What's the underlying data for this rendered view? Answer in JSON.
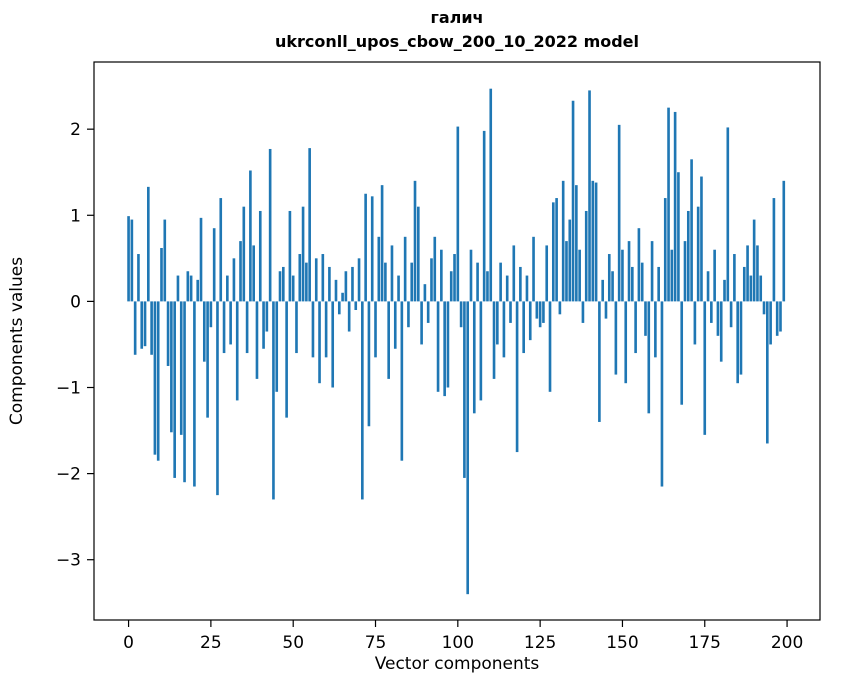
{
  "chart_data": {
    "type": "bar",
    "title_lines": [
      "галич",
      "ukrconll_upos_cbow_200_10_2022 model"
    ],
    "xlabel": "Vector components",
    "ylabel": "Components values",
    "bar_color": "#1f77b4",
    "legend": "none",
    "grid": false,
    "xticks": [
      0,
      25,
      50,
      75,
      100,
      125,
      150,
      175,
      200
    ],
    "yticks": [
      -3,
      -2,
      -1,
      0,
      1,
      2
    ],
    "xlim": [
      -10.5,
      210
    ],
    "ylim": [
      -3.7,
      2.78
    ],
    "x_start": 0,
    "values": [
      0.99,
      0.95,
      -0.62,
      0.55,
      -0.55,
      -0.52,
      1.33,
      -0.62,
      -1.78,
      -1.85,
      0.62,
      0.95,
      -0.75,
      -1.52,
      -2.05,
      0.3,
      -1.55,
      -2.1,
      0.35,
      0.3,
      -2.15,
      0.25,
      0.97,
      -0.7,
      -1.35,
      -0.3,
      0.85,
      -2.25,
      1.2,
      -0.6,
      0.3,
      -0.5,
      0.5,
      -1.15,
      0.7,
      1.1,
      -0.6,
      1.52,
      0.65,
      -0.9,
      1.05,
      -0.55,
      -0.35,
      1.77,
      -2.3,
      -1.05,
      0.35,
      0.4,
      -1.35,
      1.05,
      0.3,
      -0.6,
      0.55,
      1.1,
      0.45,
      1.78,
      -0.65,
      0.5,
      -0.95,
      0.55,
      -0.65,
      0.4,
      -1.0,
      0.25,
      -0.15,
      0.1,
      0.35,
      -0.35,
      0.4,
      -0.1,
      0.5,
      -2.3,
      1.25,
      -1.45,
      1.22,
      -0.65,
      0.75,
      1.35,
      0.45,
      -0.9,
      0.65,
      -0.55,
      0.3,
      -1.85,
      0.75,
      -0.3,
      0.45,
      1.4,
      1.1,
      -0.5,
      0.2,
      -0.25,
      0.5,
      0.75,
      -1.05,
      0.6,
      -1.1,
      -1.0,
      0.35,
      0.55,
      2.03,
      -0.3,
      -2.05,
      -3.4,
      0.6,
      -1.3,
      0.45,
      -1.15,
      1.98,
      0.35,
      2.47,
      -0.9,
      -0.5,
      0.45,
      -0.65,
      0.3,
      -0.25,
      0.65,
      -1.75,
      0.4,
      -0.6,
      0.3,
      -0.45,
      0.75,
      -0.2,
      -0.3,
      -0.25,
      0.65,
      -1.05,
      1.15,
      1.2,
      -0.15,
      1.4,
      0.7,
      0.95,
      2.33,
      1.35,
      0.6,
      -0.25,
      1.05,
      2.45,
      1.4,
      1.38,
      -1.4,
      0.25,
      -0.2,
      0.55,
      0.35,
      -0.85,
      2.05,
      0.6,
      -0.95,
      0.7,
      0.4,
      -0.6,
      0.85,
      0.45,
      -0.4,
      -1.3,
      0.7,
      -0.65,
      0.4,
      -2.15,
      1.2,
      2.25,
      0.6,
      2.2,
      1.5,
      -1.2,
      0.7,
      1.05,
      1.65,
      -0.5,
      1.1,
      1.45,
      -1.55,
      0.35,
      -0.25,
      0.6,
      -0.4,
      -0.7,
      0.25,
      2.02,
      -0.3,
      0.55,
      -0.95,
      -0.85,
      0.4,
      0.65,
      0.3,
      0.95,
      0.65,
      0.3,
      -0.15,
      -1.65,
      -0.5,
      1.2,
      -0.4,
      -0.35,
      1.4
    ]
  }
}
